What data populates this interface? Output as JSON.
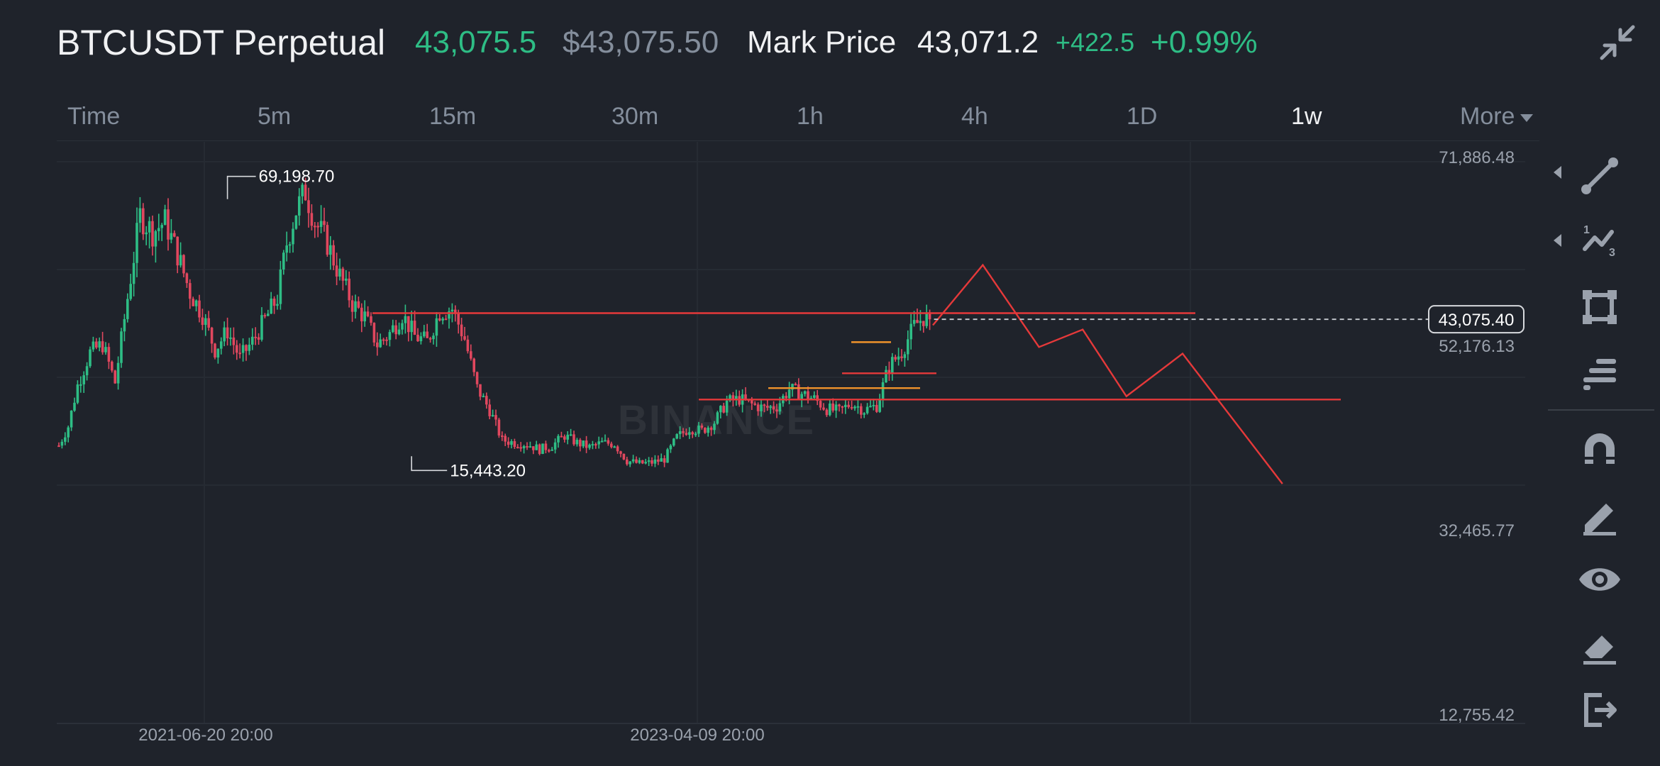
{
  "header": {
    "symbol": "BTCUSDT Perpetual",
    "last_price": "43,075.5",
    "usd_price": "$43,075.50",
    "mark_label": "Mark Price",
    "mark_value": "43,071.2",
    "change_abs": "+422.5",
    "change_pct": "+0.99%",
    "collapse_icon": "collapse-arrows-icon"
  },
  "tabs": [
    {
      "label": "Time",
      "active": false
    },
    {
      "label": "5m",
      "active": false
    },
    {
      "label": "15m",
      "active": false
    },
    {
      "label": "30m",
      "active": false
    },
    {
      "label": "1h",
      "active": false
    },
    {
      "label": "4h",
      "active": false
    },
    {
      "label": "1D",
      "active": false
    },
    {
      "label": "1w",
      "active": true
    },
    {
      "label": "More",
      "active": false
    }
  ],
  "chart": {
    "watermark": "BINANCE",
    "y_axis_labels": [
      "71,886.48",
      "52,176.13",
      "32,465.77",
      "12,755.42"
    ],
    "x_axis_labels": [
      "2021-06-20 20:00",
      "2023-04-09 20:00"
    ],
    "high_label": "69,198.70",
    "low_label": "15,443.20",
    "current_price_tag": "43,075.40",
    "colors": {
      "up": "#2ebd85",
      "down": "#e0475e",
      "drawing": "#e5393a",
      "orange": "#f0932b"
    }
  },
  "chart_data": {
    "type": "candlestick",
    "title": "",
    "interval": "1w",
    "xlabel": "",
    "ylabel": "",
    "ylim": [
      12755.42,
      71886.48
    ],
    "yticks": [
      71886.48,
      52176.13,
      32465.77,
      12755.42
    ],
    "xtick_labels": [
      "2021-06-20 20:00",
      "2023-04-09 20:00"
    ],
    "annotated_high": 69198.7,
    "annotated_low": 15443.2,
    "last_price": 43075.4,
    "grid": true,
    "close_path": [
      [
        0,
        20000
      ],
      [
        3,
        23500
      ],
      [
        6,
        31000
      ],
      [
        10,
        37000
      ],
      [
        14,
        38500
      ],
      [
        18,
        31500
      ],
      [
        22,
        47000
      ],
      [
        26,
        62000
      ],
      [
        30,
        59000
      ],
      [
        34,
        61000
      ],
      [
        38,
        55000
      ],
      [
        42,
        48000
      ],
      [
        46,
        44000
      ],
      [
        50,
        37500
      ],
      [
        54,
        41000
      ],
      [
        58,
        36000
      ],
      [
        62,
        39000
      ],
      [
        66,
        43000
      ],
      [
        70,
        47000
      ],
      [
        73,
        57000
      ],
      [
        76,
        63000
      ],
      [
        79,
        66500
      ],
      [
        82,
        61000
      ],
      [
        86,
        57000
      ],
      [
        90,
        51000
      ],
      [
        94,
        46000
      ],
      [
        98,
        43500
      ],
      [
        102,
        38500
      ],
      [
        106,
        40500
      ],
      [
        110,
        44000
      ],
      [
        114,
        40000
      ],
      [
        118,
        39000
      ],
      [
        122,
        44500
      ],
      [
        126,
        45000
      ],
      [
        130,
        39500
      ],
      [
        134,
        30500
      ],
      [
        138,
        26500
      ],
      [
        142,
        21000
      ],
      [
        146,
        20500
      ],
      [
        150,
        20300
      ],
      [
        154,
        19300
      ],
      [
        158,
        20000
      ],
      [
        162,
        21800
      ],
      [
        166,
        20500
      ],
      [
        170,
        19700
      ],
      [
        174,
        20500
      ],
      [
        178,
        20300
      ],
      [
        182,
        17200
      ],
      [
        186,
        16700
      ],
      [
        190,
        16900
      ],
      [
        194,
        17500
      ],
      [
        198,
        21500
      ],
      [
        202,
        23200
      ],
      [
        206,
        22700
      ],
      [
        210,
        24300
      ],
      [
        214,
        28000
      ],
      [
        218,
        28500
      ],
      [
        222,
        27500
      ],
      [
        226,
        26800
      ],
      [
        230,
        27200
      ],
      [
        234,
        30300
      ],
      [
        238,
        29500
      ],
      [
        242,
        28500
      ],
      [
        246,
        26700
      ],
      [
        250,
        26200
      ],
      [
        254,
        27800
      ],
      [
        258,
        26500
      ],
      [
        262,
        27300
      ],
      [
        266,
        34500
      ],
      [
        270,
        37200
      ],
      [
        274,
        41800
      ],
      [
        277,
        43500
      ],
      [
        279,
        43075.4
      ]
    ],
    "drawings": [
      {
        "type": "horizontal",
        "price": 44200,
        "color": "red"
      },
      {
        "type": "horizontal",
        "price": 33200,
        "color": "red"
      },
      {
        "type": "horizontal",
        "price": 28400,
        "color": "red"
      },
      {
        "type": "horizontal",
        "price": 30500,
        "color": "orange"
      },
      {
        "type": "horizontal",
        "price": 38900,
        "color": "orange"
      },
      {
        "type": "polyline",
        "color": "red",
        "points": [
          [
            280,
            42000
          ],
          [
            296,
            53000
          ],
          [
            314,
            38000
          ],
          [
            328,
            41200
          ],
          [
            342,
            29000
          ],
          [
            360,
            36800
          ],
          [
            392,
            13000
          ]
        ]
      }
    ]
  },
  "tools": [
    {
      "name": "trend-line-icon",
      "has_arrow": true
    },
    {
      "name": "fib-wave-icon",
      "has_arrow": true
    },
    {
      "name": "rectangle-icon",
      "has_arrow": false
    },
    {
      "name": "text-align-icon",
      "has_arrow": false
    },
    {
      "name": "magnet-icon",
      "has_arrow": false
    },
    {
      "name": "pencil-icon",
      "has_arrow": false
    },
    {
      "name": "eye-icon",
      "has_arrow": false
    },
    {
      "name": "eraser-icon",
      "has_arrow": false
    },
    {
      "name": "exit-icon",
      "has_arrow": false
    }
  ]
}
